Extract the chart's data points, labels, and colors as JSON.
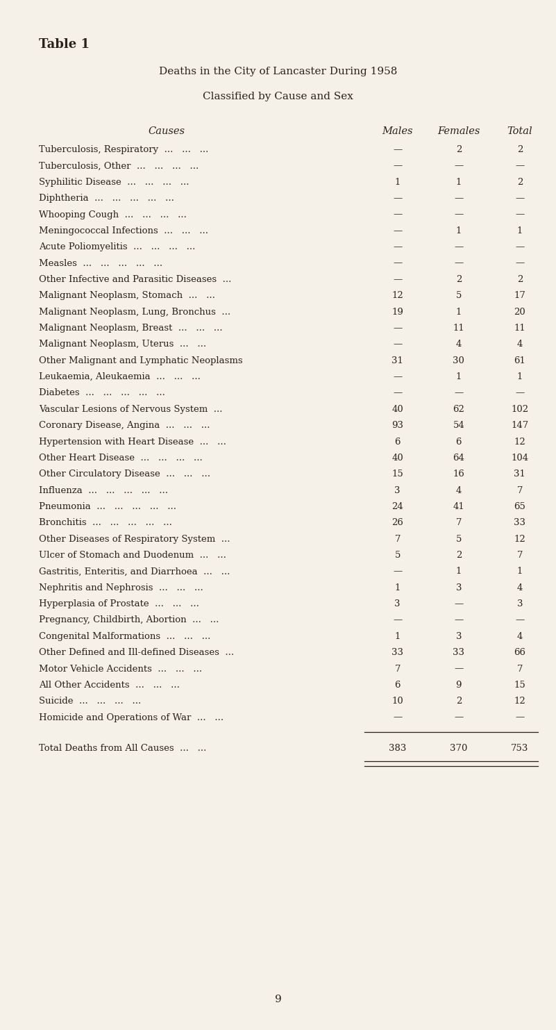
{
  "title1": "Table 1",
  "title2": "Deaths in the City of Lancaster During 1958",
  "title3": "Classified by Cause and Sex",
  "bg_color": "#f5f0e8",
  "text_color": "#2a2218",
  "rows": [
    [
      "Tuberculosis, Respiratory",
      "...   ...   ...",
      "—",
      "2",
      "2"
    ],
    [
      "Tuberculosis, Other",
      "...   ...   ...   ...",
      "—",
      "—",
      "—"
    ],
    [
      "Syphilitic Disease",
      "...   ...   ...   ...",
      "1",
      "1",
      "2"
    ],
    [
      "Diphtheria",
      "...   ...   ...   ...   ...",
      "—",
      "—",
      "—"
    ],
    [
      "Whooping Cough",
      "...   ...   ...   ...",
      "—",
      "—",
      "—"
    ],
    [
      "Meningococcal Infections",
      "...   ...   ...",
      "—",
      "1",
      "1"
    ],
    [
      "Acute Poliomyelitis",
      "...   ...   ...   ...",
      "—",
      "—",
      "—"
    ],
    [
      "Measles",
      "...   ...   ...   ...   ...",
      "—",
      "—",
      "—"
    ],
    [
      "Other Infective and Parasitic Diseases",
      "...",
      "—",
      "2",
      "2"
    ],
    [
      "Malignant Neoplasm, Stomach",
      "...   ...",
      "12",
      "5",
      "17"
    ],
    [
      "Malignant Neoplasm, Lung, Bronchus",
      "...",
      "19",
      "1",
      "20"
    ],
    [
      "Malignant Neoplasm, Breast",
      "...   ...   ...",
      "—",
      "11",
      "11"
    ],
    [
      "Malignant Neoplasm, Uterus",
      "...   ...",
      "—",
      "4",
      "4"
    ],
    [
      "Other Malignant and Lymphatic Neoplasms",
      "",
      "31",
      "30",
      "61"
    ],
    [
      "Leukaemia, Aleukaemia",
      "...   ...   ...",
      "—",
      "1",
      "1"
    ],
    [
      "Diabetes",
      "...   ...   ...   ...   ...",
      "—",
      "—",
      "—"
    ],
    [
      "Vascular Lesions of Nervous System",
      "...",
      "40",
      "62",
      "102"
    ],
    [
      "Coronary Disease, Angina",
      "...   ...   ...",
      "93",
      "54",
      "147"
    ],
    [
      "Hypertension with Heart Disease",
      "...   ...",
      "6",
      "6",
      "12"
    ],
    [
      "Other Heart Disease",
      "...   ...   ...   ...",
      "40",
      "64",
      "104"
    ],
    [
      "Other Circulatory Disease",
      "...   ...   ...",
      "15",
      "16",
      "31"
    ],
    [
      "Influenza",
      "...   ...   ...   ...   ...",
      "3",
      "4",
      "7"
    ],
    [
      "Pneumonia",
      "...   ...   ...   ...   ...",
      "24",
      "41",
      "65"
    ],
    [
      "Bronchitis",
      "...   ...   ...   ...   ...",
      "26",
      "7",
      "33"
    ],
    [
      "Other Diseases of Respiratory System",
      "...",
      "7",
      "5",
      "12"
    ],
    [
      "Ulcer of Stomach and Duodenum",
      "...   ...",
      "5",
      "2",
      "7"
    ],
    [
      "Gastritis, Enteritis, and Diarrhoea",
      "...   ...",
      "—",
      "1",
      "1"
    ],
    [
      "Nephritis and Nephrosis",
      "...   ...   ...",
      "1",
      "3",
      "4"
    ],
    [
      "Hyperplasia of Prostate",
      "...   ...   ...",
      "3",
      "—",
      "3"
    ],
    [
      "Pregnancy, Childbirth, Abortion",
      "...   ...",
      "—",
      "—",
      "—"
    ],
    [
      "Congenital Malformations",
      "...   ...   ...",
      "1",
      "3",
      "4"
    ],
    [
      "Other Defined and Ill-defined Diseases",
      "...",
      "33",
      "33",
      "66"
    ],
    [
      "Motor Vehicle Accidents",
      "...   ...   ...",
      "7",
      "—",
      "7"
    ],
    [
      "All Other Accidents",
      "...   ...   ...",
      "6",
      "9",
      "15"
    ],
    [
      "Suicide",
      "...   ...   ...   ...",
      "10",
      "2",
      "12"
    ],
    [
      "Homicide and Operations of War",
      "...   ...",
      "—",
      "—",
      "—"
    ]
  ],
  "total_label": "Total Deaths from All Causes",
  "total_dots": "...   ...",
  "total_males": "383",
  "total_females": "370",
  "total_total": "753",
  "page_number": "9"
}
